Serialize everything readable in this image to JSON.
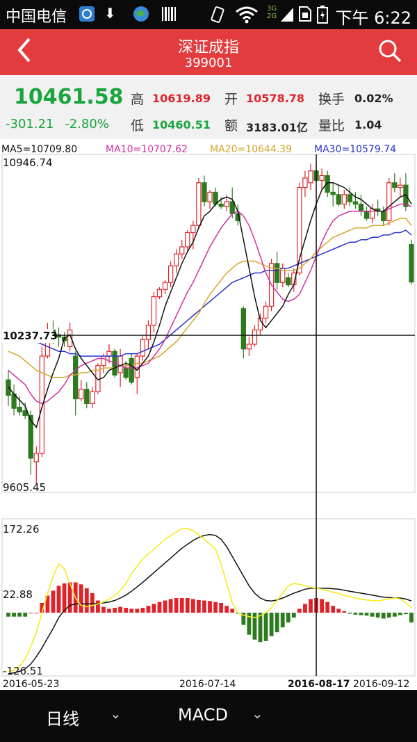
{
  "status": {
    "carrier": "中国电信",
    "time": "下午 6:22",
    "icons": [
      "apps-icon",
      "download-icon",
      "globe-icon",
      "barcode-icon",
      "vibrate-icon",
      "wifi-icon",
      "signal-3g2g-icon",
      "sim-icon",
      "battery-icon"
    ]
  },
  "header": {
    "title": "深证成指",
    "code": "399001"
  },
  "quote": {
    "price": "10461.58",
    "change": "-301.21",
    "change_pct": "-2.80%",
    "high_label": "高",
    "high": "10619.89",
    "low_label": "低",
    "low": "10460.51",
    "open_label": "开",
    "open": "10578.78",
    "amount_label": "额",
    "amount": "3183.01亿",
    "turnover_label": "换手",
    "turnover": "0.02%",
    "volratio_label": "量比",
    "volratio": "1.04"
  },
  "ma": {
    "ma5": "MA5=10709.80",
    "ma10": "MA10=10707.62",
    "ma20": "MA20=10644.39",
    "ma30": "MA30=10579.74"
  },
  "colors": {
    "up": "#e0232a",
    "down": "#2d7a1f",
    "ma5": "#111111",
    "ma10": "#d22fa0",
    "ma20": "#d6a52a",
    "ma30": "#2a33cc",
    "header": "#e23c3e"
  },
  "chart_data": [
    {
      "type": "candlestick",
      "y_top_label": "10946.74",
      "y_bottom_label": "9605.45",
      "y_range": [
        9605.45,
        10946.74
      ],
      "crosshair_value_label": "10237.73",
      "crosshair_value": 10237.73,
      "ohlc": [
        [
          10050,
          10090,
          9940,
          9985
        ],
        [
          9990,
          10030,
          9900,
          9930
        ],
        [
          9935,
          9980,
          9900,
          9915
        ],
        [
          9920,
          9955,
          9885,
          9900
        ],
        [
          9900,
          9920,
          9650,
          9720
        ],
        [
          9705,
          9770,
          9610,
          9740
        ],
        [
          9740,
          10190,
          9725,
          10150
        ],
        [
          10150,
          10290,
          10140,
          10260
        ],
        [
          10260,
          10300,
          10200,
          10240
        ],
        [
          10240,
          10270,
          10190,
          10230
        ],
        [
          10230,
          10250,
          10190,
          10215
        ],
        [
          10190,
          10290,
          10170,
          10260
        ],
        [
          10150,
          10170,
          9900,
          9970
        ],
        [
          9970,
          10050,
          9960,
          10010
        ],
        [
          10010,
          10040,
          9930,
          9950
        ],
        [
          9950,
          10020,
          9930,
          10000
        ],
        [
          10000,
          10120,
          9990,
          10110
        ],
        [
          10110,
          10160,
          10080,
          10150
        ],
        [
          10150,
          10200,
          10120,
          10170
        ],
        [
          10170,
          10180,
          10060,
          10070
        ],
        [
          10080,
          10180,
          10020,
          10150
        ],
        [
          10100,
          10130,
          10050,
          10060
        ],
        [
          10140,
          10160,
          10030,
          10040
        ],
        [
          10060,
          10160,
          9990,
          10150
        ],
        [
          10150,
          10240,
          10130,
          10220
        ],
        [
          10220,
          10300,
          10180,
          10280
        ],
        [
          10280,
          10420,
          10250,
          10400
        ],
        [
          10400,
          10440,
          10390,
          10430
        ],
        [
          10430,
          10470,
          10410,
          10460
        ],
        [
          10460,
          10550,
          10440,
          10530
        ],
        [
          10530,
          10600,
          10500,
          10580
        ],
        [
          10580,
          10640,
          10560,
          10610
        ],
        [
          10610,
          10680,
          10590,
          10670
        ],
        [
          10670,
          10720,
          10600,
          10700
        ],
        [
          10700,
          10900,
          10690,
          10880
        ],
        [
          10880,
          10910,
          10780,
          10800
        ],
        [
          10800,
          10850,
          10770,
          10840
        ],
        [
          10840,
          10860,
          10780,
          10790
        ],
        [
          10790,
          10820,
          10770,
          10780
        ],
        [
          10780,
          10830,
          10760,
          10800
        ],
        [
          10800,
          10860,
          10730,
          10750
        ],
        [
          10750,
          10790,
          10700,
          10720
        ],
        [
          10350,
          10360,
          10140,
          10180
        ],
        [
          10180,
          10230,
          10150,
          10200
        ],
        [
          10200,
          10280,
          10190,
          10260
        ],
        [
          10260,
          10330,
          10240,
          10310
        ],
        [
          10310,
          10380,
          10290,
          10360
        ],
        [
          10360,
          10560,
          10340,
          10540
        ],
        [
          10540,
          10590,
          10430,
          10460
        ],
        [
          10460,
          10540,
          10440,
          10520
        ],
        [
          10480,
          10500,
          10440,
          10450
        ],
        [
          10450,
          10520,
          10420,
          10500
        ],
        [
          10500,
          10880,
          10490,
          10860
        ],
        [
          10860,
          10930,
          10820,
          10900
        ],
        [
          10880,
          10960,
          10850,
          10930
        ],
        [
          10930,
          10960,
          10870,
          10890
        ],
        [
          10890,
          10940,
          10850,
          10910
        ],
        [
          10910,
          10930,
          10820,
          10840
        ],
        [
          10840,
          10880,
          10780,
          10830
        ],
        [
          10830,
          10870,
          10780,
          10790
        ],
        [
          10790,
          10850,
          10770,
          10830
        ],
        [
          10830,
          10860,
          10780,
          10800
        ],
        [
          10800,
          10840,
          10770,
          10790
        ],
        [
          10790,
          10830,
          10740,
          10760
        ],
        [
          10760,
          10780,
          10720,
          10730
        ],
        [
          10730,
          10790,
          10710,
          10770
        ],
        [
          10770,
          10810,
          10740,
          10760
        ],
        [
          10760,
          10780,
          10700,
          10720
        ],
        [
          10720,
          10900,
          10700,
          10880
        ],
        [
          10880,
          10920,
          10840,
          10860
        ],
        [
          10860,
          10900,
          10820,
          10870
        ],
        [
          10870,
          10920,
          10760,
          10780
        ],
        [
          10620,
          10640,
          10450,
          10462
        ]
      ],
      "ma5": [
        10020,
        9990,
        9965,
        9940,
        9880,
        9850,
        9935,
        10010,
        10080,
        10140,
        10225,
        10240,
        10180,
        10140,
        10110,
        10080,
        10050,
        10060,
        10090,
        10100,
        10110,
        10120,
        10110,
        10090,
        10120,
        10150,
        10210,
        10280,
        10360,
        10420,
        10480,
        10540,
        10590,
        10630,
        10690,
        10740,
        10760,
        10790,
        10810,
        10820,
        10810,
        10760,
        10640,
        10520,
        10400,
        10300,
        10270,
        10300,
        10330,
        10360,
        10410,
        10450,
        10560,
        10640,
        10720,
        10790,
        10850,
        10880,
        10880,
        10870,
        10860,
        10840,
        10820,
        10810,
        10790,
        10770,
        10760,
        10760,
        10780,
        10800,
        10820,
        10830,
        10790
      ],
      "ma10": [
        10090,
        10070,
        10050,
        10030,
        9990,
        9960,
        9950,
        9960,
        9980,
        10000,
        10030,
        10070,
        10090,
        10110,
        10120,
        10130,
        10140,
        10140,
        10130,
        10120,
        10110,
        10100,
        10100,
        10100,
        10110,
        10120,
        10150,
        10180,
        10220,
        10270,
        10320,
        10370,
        10420,
        10460,
        10510,
        10560,
        10610,
        10650,
        10690,
        10720,
        10750,
        10760,
        10740,
        10700,
        10640,
        10570,
        10500,
        10450,
        10420,
        10390,
        10380,
        10390,
        10410,
        10460,
        10510,
        10570,
        10630,
        10680,
        10720,
        10740,
        10750,
        10760,
        10760,
        10760,
        10760,
        10760,
        10760,
        10760,
        10770,
        10780,
        10790,
        10790,
        10780
      ],
      "ma20": [
        10170,
        10160,
        10150,
        10130,
        10110,
        10090,
        10080,
        10070,
        10060,
        10060,
        10060,
        10070,
        10070,
        10080,
        10080,
        10090,
        10090,
        10100,
        10100,
        10100,
        10110,
        10110,
        10110,
        10120,
        10120,
        10130,
        10140,
        10150,
        10170,
        10190,
        10210,
        10240,
        10270,
        10300,
        10330,
        10370,
        10410,
        10440,
        10470,
        10500,
        10520,
        10540,
        10550,
        10550,
        10550,
        10540,
        10530,
        10520,
        10520,
        10510,
        10510,
        10510,
        10520,
        10540,
        10560,
        10590,
        10610,
        10630,
        10650,
        10660,
        10670,
        10680,
        10690,
        10690,
        10690,
        10700,
        10700,
        10700,
        10710,
        10720,
        10730,
        10730,
        10700
      ],
      "ma30": [
        10260,
        10250,
        10240,
        10230,
        10220,
        10210,
        10200,
        10190,
        10180,
        10170,
        10170,
        10160,
        10160,
        10150,
        10150,
        10150,
        10150,
        10150,
        10150,
        10150,
        10150,
        10160,
        10160,
        10160,
        10170,
        10180,
        10190,
        10200,
        10220,
        10240,
        10260,
        10280,
        10300,
        10320,
        10340,
        10360,
        10380,
        10400,
        10420,
        10440,
        10460,
        10470,
        10480,
        10490,
        10500,
        10500,
        10510,
        10510,
        10510,
        10520,
        10520,
        10530,
        10540,
        10550,
        10560,
        10570,
        10580,
        10590,
        10600,
        10610,
        10620,
        10630,
        10630,
        10640,
        10640,
        10650,
        10650,
        10660,
        10660,
        10670,
        10670,
        10680,
        10660
      ]
    },
    {
      "type": "macd",
      "y_top_label": "172.26",
      "y_mid_label": "22.88",
      "y_bottom_label": "-126.51",
      "y_range": [
        -126.51,
        172.26
      ],
      "zero": 0,
      "dates": [
        "2016-05-23",
        "2016-07-14",
        "2016-08-17",
        "2016-09-12"
      ],
      "hist": [
        -8,
        -8,
        -8,
        -8,
        0,
        0,
        20,
        35,
        45,
        55,
        60,
        62,
        62,
        58,
        50,
        40,
        25,
        12,
        8,
        10,
        12,
        10,
        8,
        8,
        10,
        14,
        18,
        22,
        25,
        28,
        30,
        30,
        30,
        28,
        26,
        25,
        24,
        22,
        20,
        14,
        8,
        -2,
        -25,
        -45,
        -55,
        -60,
        -58,
        -48,
        -40,
        -30,
        -20,
        -10,
        8,
        18,
        28,
        30,
        28,
        22,
        14,
        8,
        3,
        -2,
        -4,
        -5,
        -6,
        -8,
        -10,
        -12,
        -10,
        -8,
        -5,
        -3,
        -20
      ],
      "dif": [
        -120,
        -118,
        -110,
        -95,
        -70,
        -40,
        0,
        40,
        75,
        100,
        90,
        60,
        30,
        15,
        12,
        15,
        18,
        22,
        28,
        35,
        45,
        60,
        80,
        95,
        110,
        120,
        130,
        140,
        150,
        158,
        165,
        172,
        172,
        168,
        160,
        150,
        140,
        130,
        100,
        60,
        20,
        0,
        -5,
        -8,
        -10,
        -6,
        0,
        10,
        25,
        40,
        55,
        60,
        58,
        55,
        52,
        50,
        48,
        45,
        42,
        40,
        35,
        33,
        30,
        28,
        26,
        25,
        24,
        26,
        28,
        30,
        28,
        20,
        10
      ],
      "dea": [
        -125,
        -123,
        -120,
        -115,
        -105,
        -90,
        -72,
        -52,
        -32,
        -10,
        5,
        15,
        18,
        18,
        18,
        18,
        19,
        20,
        22,
        25,
        30,
        36,
        44,
        53,
        62,
        72,
        82,
        92,
        102,
        112,
        122,
        132,
        140,
        148,
        154,
        158,
        160,
        158,
        150,
        135,
        115,
        95,
        75,
        55,
        40,
        30,
        25,
        24,
        26,
        30,
        35,
        40,
        44,
        48,
        50,
        50,
        50,
        50,
        49,
        48,
        46,
        44,
        42,
        40,
        38,
        36,
        34,
        32,
        31,
        30,
        30,
        28,
        24
      ]
    }
  ],
  "bottom": {
    "period": "日线",
    "indicator": "MACD",
    "caret": "⌄"
  }
}
